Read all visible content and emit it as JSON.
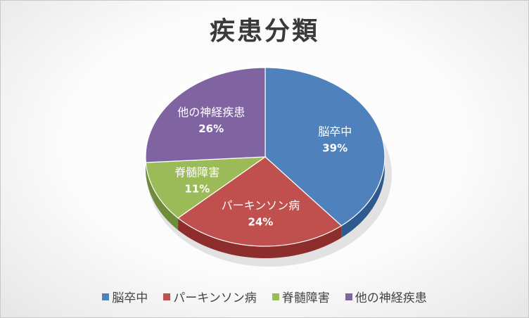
{
  "chart_data": {
    "type": "pie",
    "title": "疾患分類",
    "categories": [
      "脳卒中",
      "パーキンソン病",
      "脊髄障害",
      "他の神経疾患"
    ],
    "values": [
      39,
      24,
      11,
      26
    ],
    "value_labels": [
      "39%",
      "24%",
      "11%",
      "26%"
    ],
    "colors": [
      "#4f81bd",
      "#c0504d",
      "#9bbb59",
      "#8064a2"
    ],
    "side_colors": [
      "#2f5a8e",
      "#8e2e2c",
      "#6f8c3a",
      "#5a4478"
    ],
    "legend_position": "bottom"
  }
}
